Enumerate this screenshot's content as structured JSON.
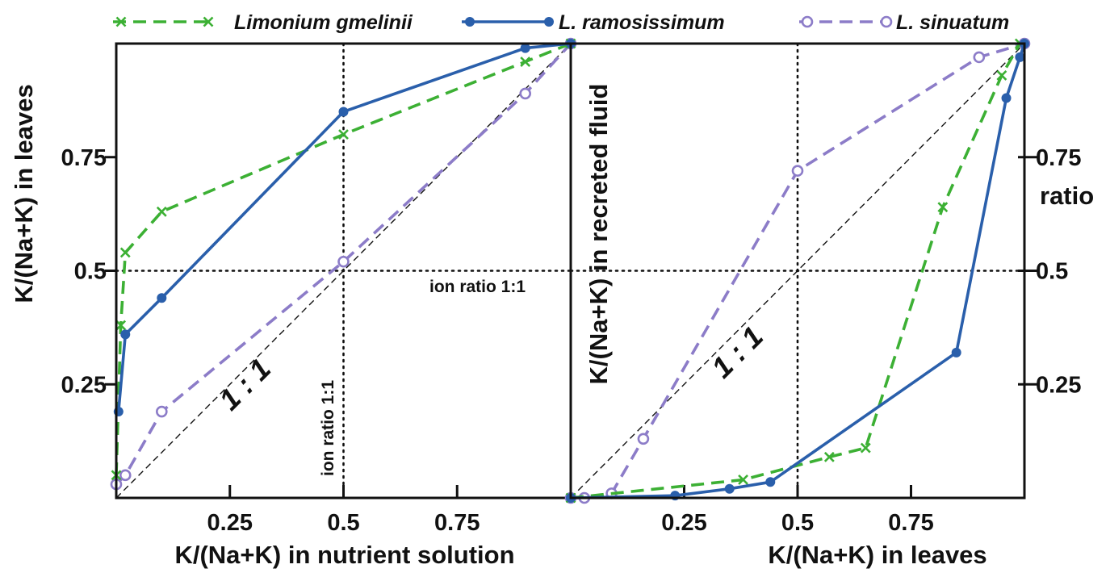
{
  "colors": {
    "limonium_gmelinii": "#3cb034",
    "l_ramosissimum": "#2a5fab",
    "l_sinuatum": "#8c7cc8",
    "axis": "#111111"
  },
  "legend": [
    {
      "label": "Limonium gmelinii",
      "series": "limonium_gmelinii"
    },
    {
      "label": "L. ramosissimum",
      "series": "l_ramosissimum"
    },
    {
      "label": "L. sinuatum",
      "series": "l_sinuatum"
    }
  ],
  "right_axis_label": "ratio",
  "chart_data": [
    {
      "type": "line",
      "xlabel": "K/(Na+K) in nutrient solution",
      "ylabel": "K/(Na+K) in leaves",
      "xlim": [
        0,
        1
      ],
      "ylim": [
        0,
        1
      ],
      "x_ticks": [
        0.25,
        0.5,
        0.75
      ],
      "x_tick_labels": [
        "0.25",
        "0.5",
        "0.75"
      ],
      "y_ticks": [
        0.25,
        0.5,
        0.75
      ],
      "y_tick_labels": [
        "0.25",
        "0.5",
        "0.75"
      ],
      "reference_lines": {
        "x": 0.5,
        "y": 0.5,
        "diagonal": true
      },
      "annotations": {
        "diagonal_label": "1 : 1",
        "horizontal_ratio_label": "ion ratio 1:1",
        "vertical_ratio_label": "ion ratio 1:1"
      },
      "series": [
        {
          "key": "limonium_gmelinii",
          "name": "Limonium gmelinii",
          "marker": "x",
          "dash": true,
          "x": [
            0.0,
            0.01,
            0.02,
            0.1,
            0.5,
            0.9,
            1.0
          ],
          "y": [
            0.05,
            0.38,
            0.54,
            0.63,
            0.8,
            0.96,
            1.0
          ]
        },
        {
          "key": "l_ramosissimum",
          "name": "L. ramosissimum",
          "marker": "filled",
          "dash": false,
          "x": [
            0.005,
            0.02,
            0.1,
            0.5,
            0.9,
            1.0
          ],
          "y": [
            0.19,
            0.36,
            0.44,
            0.85,
            0.99,
            1.0
          ]
        },
        {
          "key": "l_sinuatum",
          "name": "L. sinuatum",
          "marker": "open",
          "dash": true,
          "x": [
            0.0,
            0.02,
            0.1,
            0.5,
            0.9,
            1.0
          ],
          "y": [
            0.03,
            0.05,
            0.19,
            0.52,
            0.89,
            1.0
          ]
        }
      ]
    },
    {
      "type": "line",
      "xlabel": "K/(Na+K) in leaves",
      "ylabel": "K/(Na+K) in recreted fluid",
      "xlim": [
        0,
        1
      ],
      "ylim": [
        0,
        1
      ],
      "x_ticks": [
        0.25,
        0.5,
        0.75
      ],
      "x_tick_labels": [
        "0.25",
        "0.5",
        "0.75"
      ],
      "y_ticks": [
        0.25,
        0.5,
        0.75
      ],
      "y_tick_labels": [
        "0.25",
        "0.5",
        "0.75"
      ],
      "reference_lines": {
        "x": 0.5,
        "y": 0.5,
        "diagonal": true
      },
      "annotations": {
        "diagonal_label": "1 : 1"
      },
      "series": [
        {
          "key": "limonium_gmelinii",
          "name": "Limonium gmelinii",
          "marker": "x",
          "dash": true,
          "x": [
            0.0,
            0.38,
            0.57,
            0.65,
            0.82,
            0.95,
            0.99
          ],
          "y": [
            0.0,
            0.04,
            0.09,
            0.11,
            0.64,
            0.93,
            1.0
          ]
        },
        {
          "key": "l_ramosissimum",
          "name": "L. ramosissimum",
          "marker": "filled",
          "dash": false,
          "x": [
            0.0,
            0.23,
            0.35,
            0.44,
            0.85,
            0.96,
            0.99,
            1.0
          ],
          "y": [
            0.0,
            0.005,
            0.02,
            0.035,
            0.32,
            0.88,
            0.97,
            1.0
          ]
        },
        {
          "key": "l_sinuatum",
          "name": "L. sinuatum",
          "marker": "open",
          "dash": true,
          "x": [
            0.0,
            0.03,
            0.09,
            0.16,
            0.5,
            0.9,
            1.0
          ],
          "y": [
            0.0,
            0.0,
            0.01,
            0.13,
            0.72,
            0.97,
            1.0
          ]
        }
      ]
    }
  ]
}
